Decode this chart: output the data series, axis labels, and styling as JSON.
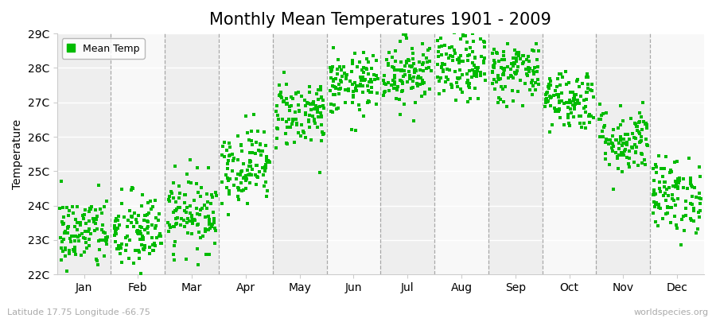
{
  "title": "Monthly Mean Temperatures 1901 - 2009",
  "ylabel": "Temperature",
  "ylim_min": 22,
  "ylim_max": 29,
  "ytick_labels": [
    "22C",
    "23C",
    "24C",
    "25C",
    "26C",
    "27C",
    "28C",
    "29C"
  ],
  "ytick_values": [
    22,
    23,
    24,
    25,
    26,
    27,
    28,
    29
  ],
  "months": [
    "Jan",
    "Feb",
    "Mar",
    "Apr",
    "May",
    "Jun",
    "Jul",
    "Aug",
    "Sep",
    "Oct",
    "Nov",
    "Dec"
  ],
  "scatter_color": "#00BB00",
  "marker_size": 6,
  "fig_bg_color": "#ffffff",
  "plot_bg_color": "#ffffff",
  "band_color_even": "#eeeeee",
  "band_color_odd": "#f8f8f8",
  "legend_label": "Mean Temp",
  "footer_left": "Latitude 17.75 Longitude -66.75",
  "footer_right": "worldspecies.org",
  "title_fontsize": 15,
  "axis_fontsize": 10,
  "tick_fontsize": 10,
  "footer_fontsize": 8,
  "dashed_line_color": "#888888",
  "monthly_means": [
    23.2,
    23.2,
    23.8,
    25.2,
    26.7,
    27.5,
    27.9,
    28.0,
    27.9,
    27.1,
    25.9,
    24.3
  ],
  "monthly_stds": [
    0.55,
    0.6,
    0.55,
    0.55,
    0.5,
    0.45,
    0.5,
    0.5,
    0.45,
    0.45,
    0.5,
    0.55
  ],
  "years": 109
}
